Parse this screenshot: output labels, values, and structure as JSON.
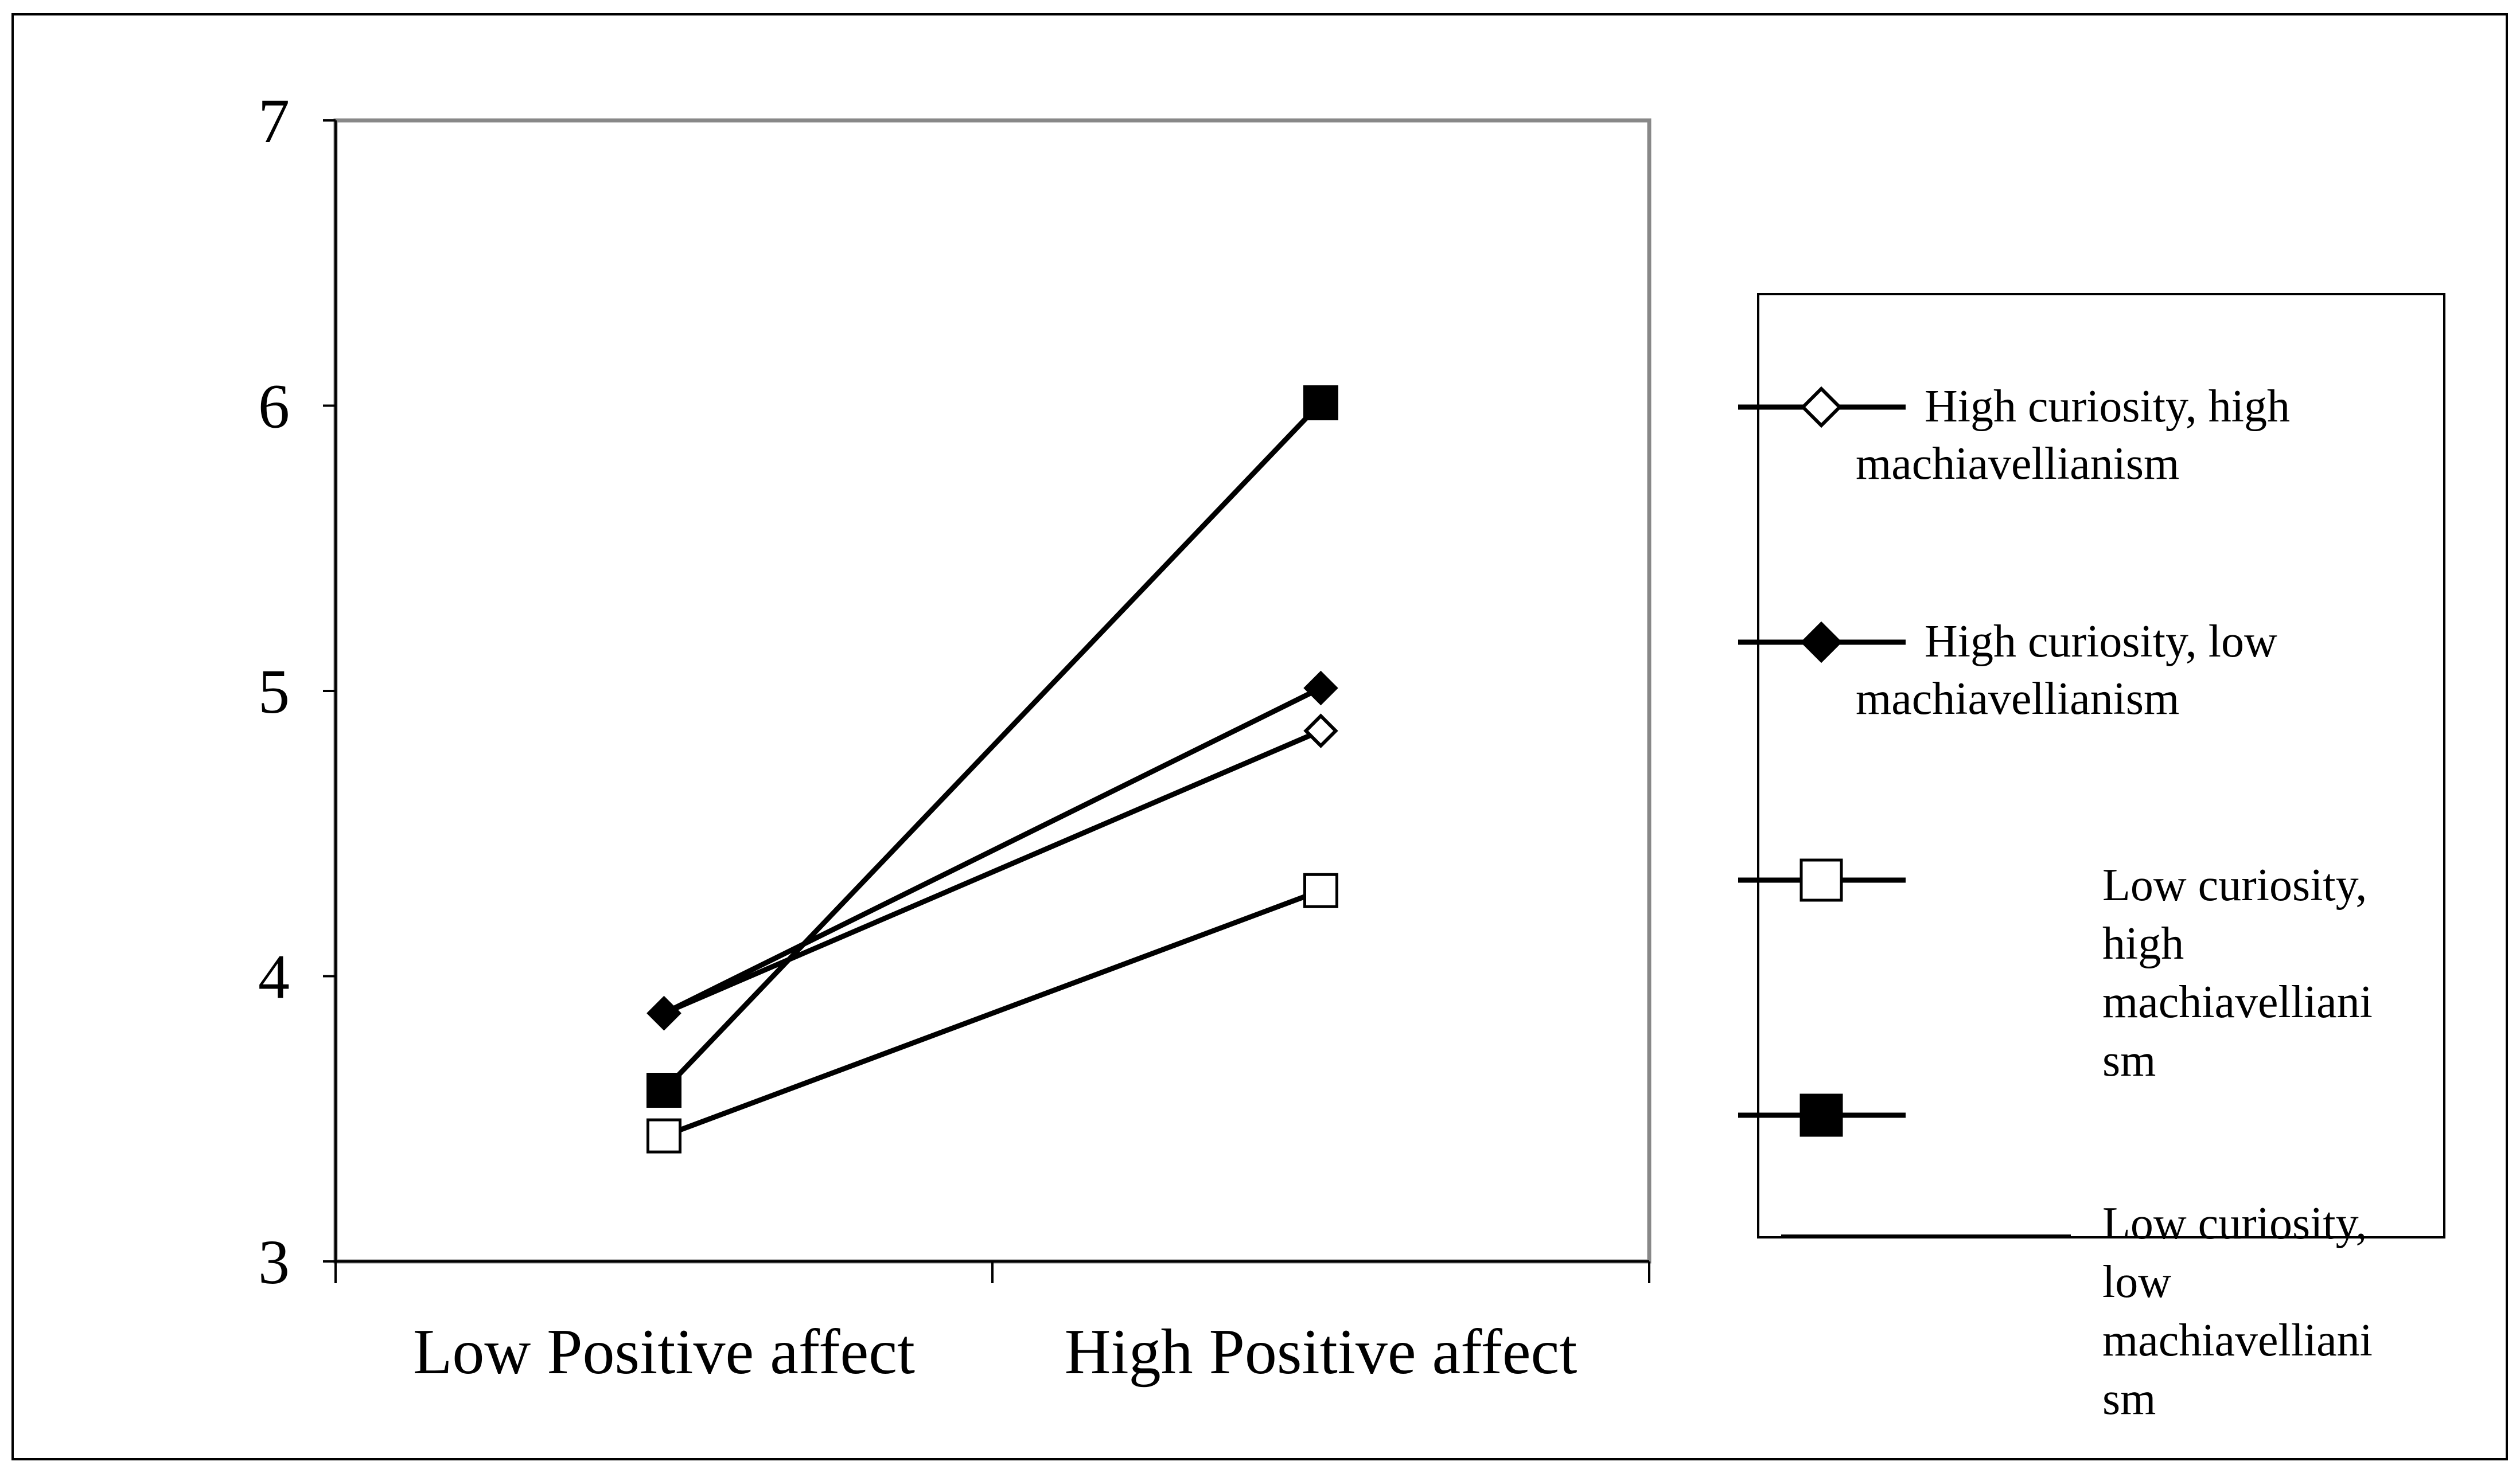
{
  "chart_data": {
    "type": "line",
    "title": "",
    "xlabel": "",
    "ylabel": "",
    "categories": [
      "Low Positive affect",
      "High Positive affect"
    ],
    "ylim": [
      3,
      7
    ],
    "yticks": [
      3,
      4,
      5,
      6,
      7
    ],
    "legend_position": "right",
    "series": [
      {
        "name": "High curiosity, high machiavellianism",
        "marker": "diamond-open",
        "legend_lines": [
          "High curiosity, high",
          "machiavellianism"
        ],
        "values": [
          3.87,
          4.86
        ]
      },
      {
        "name": "High curiosity, low machiavellianism",
        "marker": "diamond-filled",
        "legend_lines": [
          "High curiosity, low",
          "machiavellianism"
        ],
        "values": [
          3.87,
          5.01
        ]
      },
      {
        "name": "Low curiosity, high machiavellianism",
        "marker": "square-open",
        "legend_lines": [
          "Low curiosity,",
          "high",
          "machiavelliani",
          "sm"
        ],
        "values": [
          3.44,
          4.3
        ]
      },
      {
        "name": "Low curiosity, low machiavellianism",
        "marker": "square-filled",
        "legend_lines": [
          "Low curiosity,",
          "low",
          "machiavelliani",
          "sm"
        ],
        "values": [
          3.6,
          6.01
        ]
      }
    ]
  }
}
